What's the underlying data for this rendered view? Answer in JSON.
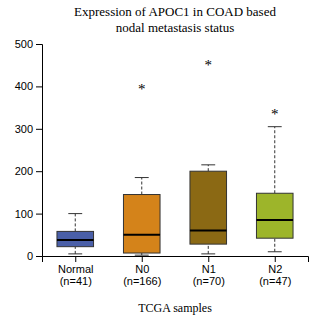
{
  "chart_data": {
    "type": "box",
    "title": "Expression of APOC1 in COAD based\nnodal metastasis status",
    "xlabel": "TCGA samples",
    "categories": [
      "Normal\n(n=41)",
      "N0\n(n=166)",
      "N1\n(n=70)",
      "N2\n(n=47)"
    ],
    "colors": [
      "#4a5fa8",
      "#d4831a",
      "#8b6914",
      "#9db52a"
    ],
    "boxes": [
      {
        "q1": 22,
        "median": 38,
        "q3": 58,
        "whislo": 5,
        "whishi": 100
      },
      {
        "q1": 7,
        "median": 50,
        "q3": 145,
        "whislo": 2,
        "whishi": 185
      },
      {
        "q1": 28,
        "median": 60,
        "q3": 200,
        "whislo": 5,
        "whishi": 215
      },
      {
        "q1": 42,
        "median": 85,
        "q3": 148,
        "whislo": 10,
        "whishi": 305
      }
    ],
    "annotations": [
      {
        "text": "*",
        "x": 1,
        "y": 395
      },
      {
        "text": "*",
        "x": 2,
        "y": 450
      },
      {
        "text": "*",
        "x": 3,
        "y": 335
      }
    ],
    "ylim": [
      0,
      500
    ],
    "yticks": [
      0,
      100,
      200,
      300,
      400,
      500
    ],
    "grid": false
  }
}
